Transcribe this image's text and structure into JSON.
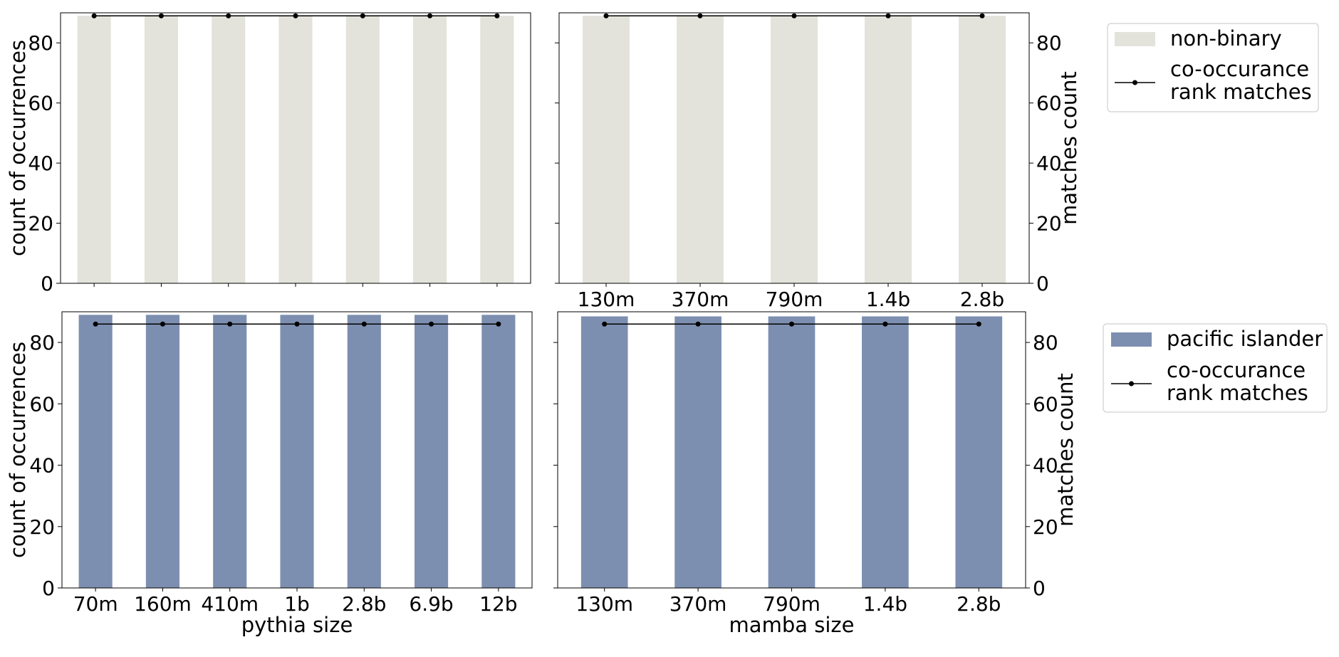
{
  "colors": {
    "non_binary": "#e3e3dc",
    "pacific_islander": "#7d8fb0",
    "line": "#000000"
  },
  "chart_data": [
    {
      "type": "bar",
      "panel": "top-left",
      "categories": [
        "70m",
        "160m",
        "410m",
        "1b",
        "2.8b",
        "6.9b",
        "12b"
      ],
      "tick_labels_visible": false,
      "series": [
        {
          "name": "non-binary",
          "kind": "bar",
          "values": [
            89,
            89,
            89,
            89,
            89,
            89,
            89
          ]
        },
        {
          "name": "co-occurance rank matches",
          "kind": "line",
          "values": [
            89,
            89,
            89,
            89,
            89,
            89,
            89
          ]
        }
      ],
      "xlabel": "",
      "ylabel": "count of occurrences",
      "ylim": [
        0,
        90
      ],
      "yticks": [
        0,
        20,
        40,
        60,
        80
      ],
      "y_tick_labels_visible": true
    },
    {
      "type": "bar",
      "panel": "top-right",
      "categories": [
        "130m",
        "370m",
        "790m",
        "1.4b",
        "2.8b"
      ],
      "tick_labels_visible": true,
      "series": [
        {
          "name": "non-binary",
          "kind": "bar",
          "values": [
            89,
            89,
            89,
            89,
            89
          ]
        },
        {
          "name": "co-occurance rank matches",
          "kind": "line",
          "values": [
            89,
            89,
            89,
            89,
            89
          ]
        }
      ],
      "xlabel": "",
      "ylabel": "",
      "ylim": [
        0,
        90
      ],
      "yticks": [
        0,
        20,
        40,
        60,
        80
      ],
      "y_tick_labels_visible": false,
      "y2label": "matches count",
      "y2ticks": [
        0,
        20,
        40,
        60,
        80
      ],
      "legend": [
        "non-binary",
        "co-occurance rank matches"
      ],
      "legend_placement": "outside right"
    },
    {
      "type": "bar",
      "panel": "bottom-left",
      "categories": [
        "70m",
        "160m",
        "410m",
        "1b",
        "2.8b",
        "6.9b",
        "12b"
      ],
      "tick_labels_visible": true,
      "series": [
        {
          "name": "pacific islander",
          "kind": "bar",
          "values": [
            89,
            89,
            89,
            89,
            89,
            89,
            89
          ]
        },
        {
          "name": "co-occurance rank matches",
          "kind": "line",
          "values": [
            86,
            86,
            86,
            86,
            86,
            86,
            86
          ]
        }
      ],
      "xlabel": "pythia size",
      "ylabel": "count of occurrences",
      "ylim": [
        0,
        90
      ],
      "yticks": [
        0,
        20,
        40,
        60,
        80
      ],
      "y_tick_labels_visible": true
    },
    {
      "type": "bar",
      "panel": "bottom-right",
      "categories": [
        "130m",
        "370m",
        "790m",
        "1.4b",
        "2.8b"
      ],
      "tick_labels_visible": true,
      "series": [
        {
          "name": "pacific islander",
          "kind": "bar",
          "values": [
            88.5,
            88.5,
            88.5,
            88.5,
            88.5
          ]
        },
        {
          "name": "co-occurance rank matches",
          "kind": "line",
          "values": [
            86,
            86,
            86,
            86,
            86
          ]
        }
      ],
      "xlabel": "mamba size",
      "ylabel": "",
      "ylim": [
        0,
        90
      ],
      "yticks": [
        0,
        20,
        40,
        60,
        80
      ],
      "y_tick_labels_visible": false,
      "y2label": "matches count",
      "y2ticks": [
        0,
        20,
        40,
        60,
        80
      ],
      "legend": [
        "pacific islander",
        "co-occurance rank matches"
      ],
      "legend_placement": "outside right"
    }
  ],
  "legends": [
    {
      "bar_label": "non-binary",
      "line_label_lines": [
        "co-occurance",
        "rank matches"
      ]
    },
    {
      "bar_label": "pacific islander",
      "line_label_lines": [
        "co-occurance",
        "rank matches"
      ]
    }
  ]
}
